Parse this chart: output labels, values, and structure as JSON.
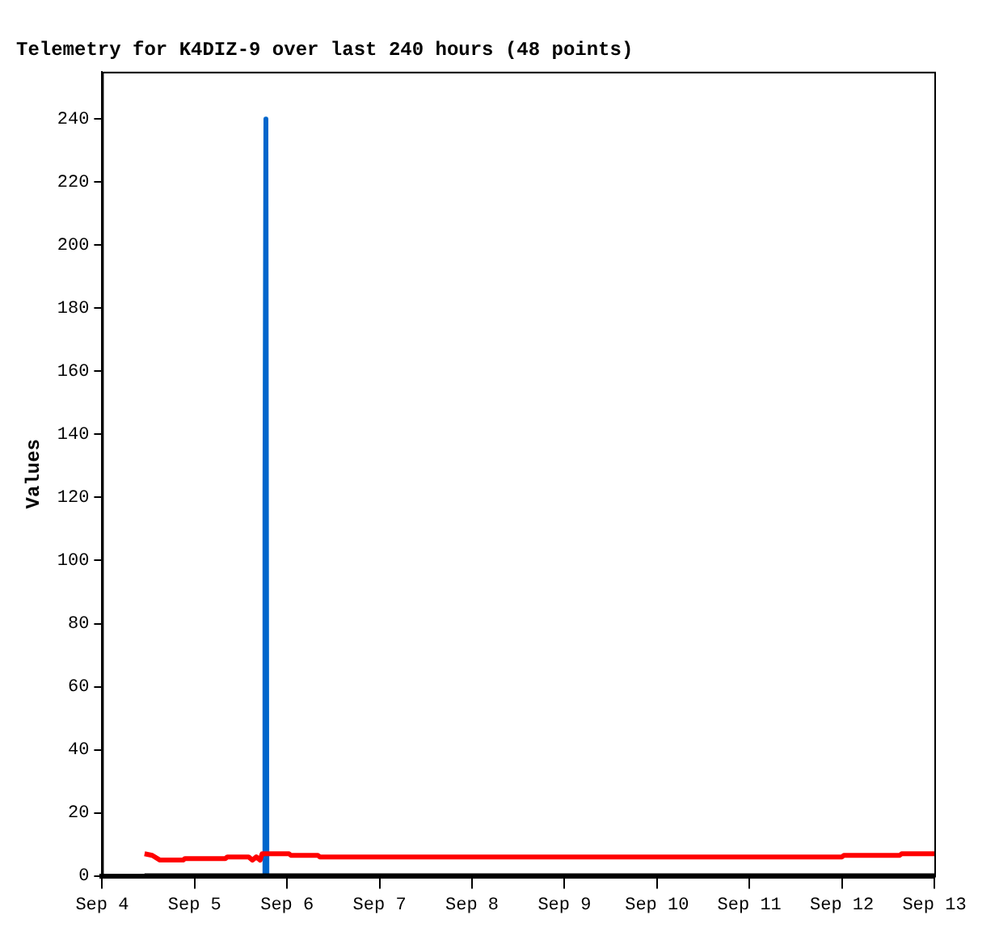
{
  "chart_data": {
    "type": "line",
    "title": "Telemetry for K4DIZ-9 over last 240 hours (48 points)",
    "ylabel": "Values",
    "xlim": [
      "--09-04",
      "--09-13"
    ],
    "xticks": [
      {
        "value": "--09-04",
        "label": "Sep 4"
      },
      {
        "value": "--09-05",
        "label": "Sep 5"
      },
      {
        "value": "--09-06",
        "label": "Sep 6"
      },
      {
        "value": "--09-07",
        "label": "Sep 7"
      },
      {
        "value": "--09-08",
        "label": "Sep 8"
      },
      {
        "value": "--09-09",
        "label": "Sep 9"
      },
      {
        "value": "--09-10",
        "label": "Sep 10"
      },
      {
        "value": "--09-11",
        "label": "Sep 11"
      },
      {
        "value": "--09-12",
        "label": "Sep 12"
      },
      {
        "value": "--09-13",
        "label": "Sep 13"
      }
    ],
    "ylim": [
      0,
      255
    ],
    "yticks": [
      0,
      20,
      40,
      60,
      80,
      100,
      120,
      140,
      160,
      180,
      200,
      220,
      240
    ],
    "grid": false,
    "legend": false,
    "marker": "none",
    "line_style": "solid",
    "series": [
      {
        "color": "#ff0000",
        "x": [
          "--09-04T11:00",
          "--09-04T13:00",
          "--09-04T15:00",
          "--09-04T21:00",
          "--09-04T21:30",
          "--09-05T08:00",
          "--09-05T08:30",
          "--09-05T14:00",
          "--09-05T15:00",
          "--09-05T16:00",
          "--09-05T17:00",
          "--09-05T17:30",
          "--09-06T00:30",
          "--09-06T01:00",
          "--09-06T08:00",
          "--09-06T08:30",
          "--09-12T00:00",
          "--09-12T00:30",
          "--09-12T15:00",
          "--09-12T15:30",
          "--09-13T00:00"
        ],
        "values": [
          7,
          6.5,
          5,
          5,
          5.5,
          5.5,
          6,
          6,
          5,
          6,
          5,
          7,
          7,
          6.5,
          6.5,
          6,
          6,
          6.5,
          6.5,
          7,
          7
        ]
      },
      {
        "color": "#000000",
        "x": [
          "--09-04T11:00",
          "--09-13T00:00"
        ],
        "values": [
          0,
          0
        ]
      },
      {
        "color": "#0066cc",
        "x": [
          "--09-05T18:00",
          "--09-05T18:15",
          "--09-05T18:30",
          "--09-05T18:45"
        ],
        "values": [
          0,
          120,
          240,
          0
        ]
      }
    ]
  }
}
